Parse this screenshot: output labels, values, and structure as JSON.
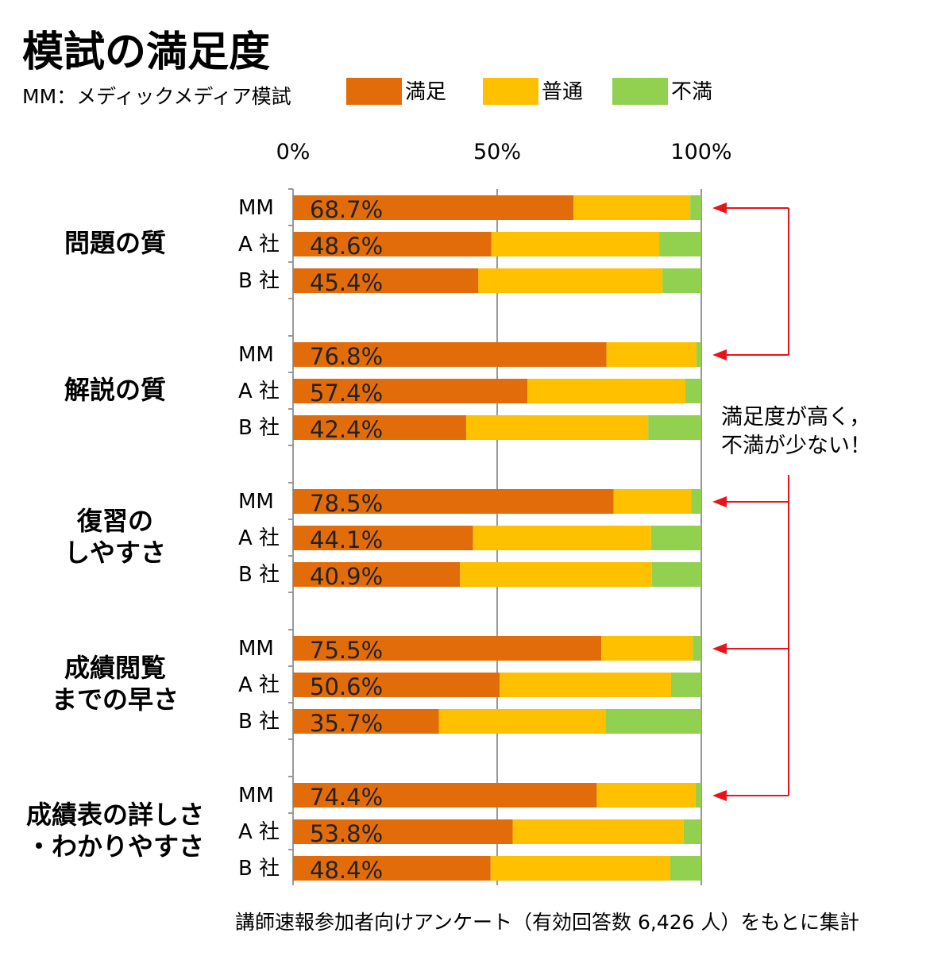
{
  "title": "模試の満足度",
  "subtitle": "MM：メディックメディア模試",
  "footnote": "講師速報参加者向けアンケート（有効回答数 6,426 人）をもとに集計",
  "annotation": [
    "満足度が高く，",
    "不満が少ない！"
  ],
  "colors": {
    "satisfied": "#E36C0A",
    "neutral": "#FFC000",
    "dissatisfied": "#92D050",
    "arrow": "#E8141B",
    "grid": "#999999"
  },
  "chart_data": {
    "type": "bar",
    "orientation": "horizontal",
    "stacked": true,
    "percent": true,
    "legend_position": "top",
    "x_ticks": [
      "0%",
      "50%",
      "100%"
    ],
    "xlim": [
      0,
      100
    ],
    "grid": true,
    "series_names": [
      "満足",
      "普通",
      "不満"
    ],
    "groups": [
      {
        "label": [
          "問題の質"
        ],
        "rows": [
          {
            "label": "MM",
            "values": [
              68.7,
              28.6,
              2.7
            ],
            "data_label": "68.7%"
          },
          {
            "label": "A 社",
            "values": [
              48.6,
              41.1,
              10.3
            ],
            "data_label": "48.6%"
          },
          {
            "label": "B 社",
            "values": [
              45.4,
              45.1,
              9.5
            ],
            "data_label": "45.4%"
          }
        ]
      },
      {
        "label": [
          "解説の質"
        ],
        "rows": [
          {
            "label": "MM",
            "values": [
              76.8,
              22.0,
              1.2
            ],
            "data_label": "76.8%"
          },
          {
            "label": "A 社",
            "values": [
              57.4,
              38.7,
              3.9
            ],
            "data_label": "57.4%"
          },
          {
            "label": "B 社",
            "values": [
              42.4,
              44.6,
              13.0
            ],
            "data_label": "42.4%"
          }
        ]
      },
      {
        "label": [
          "復習の",
          "しやすさ"
        ],
        "rows": [
          {
            "label": "MM",
            "values": [
              78.5,
              19.0,
              2.5
            ],
            "data_label": "78.5%"
          },
          {
            "label": "A 社",
            "values": [
              44.1,
              43.6,
              12.3
            ],
            "data_label": "44.1%"
          },
          {
            "label": "B 社",
            "values": [
              40.9,
              47.0,
              12.1
            ],
            "data_label": "40.9%"
          }
        ]
      },
      {
        "label": [
          "成績閲覧",
          "までの早さ"
        ],
        "rows": [
          {
            "label": "MM",
            "values": [
              75.5,
              22.4,
              2.1
            ],
            "data_label": "75.5%"
          },
          {
            "label": "A 社",
            "values": [
              50.6,
              42.0,
              7.4
            ],
            "data_label": "50.6%"
          },
          {
            "label": "B 社",
            "values": [
              35.7,
              40.8,
              23.5
            ],
            "data_label": "35.7%"
          }
        ]
      },
      {
        "label": [
          "成績表の詳しさ",
          "・わかりやすさ"
        ],
        "rows": [
          {
            "label": "MM",
            "values": [
              74.4,
              24.2,
              1.4
            ],
            "data_label": "74.4%"
          },
          {
            "label": "A 社",
            "values": [
              53.8,
              41.9,
              4.3
            ],
            "data_label": "53.8%"
          },
          {
            "label": "B 社",
            "values": [
              48.4,
              44.0,
              7.6
            ],
            "data_label": "48.4%"
          }
        ]
      }
    ]
  }
}
